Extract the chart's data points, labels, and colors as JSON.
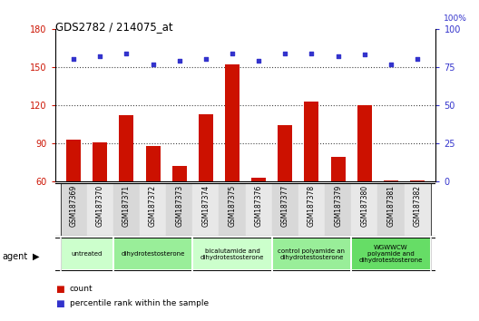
{
  "title": "GDS2782 / 214075_at",
  "samples": [
    "GSM187369",
    "GSM187370",
    "GSM187371",
    "GSM187372",
    "GSM187373",
    "GSM187374",
    "GSM187375",
    "GSM187376",
    "GSM187377",
    "GSM187378",
    "GSM187379",
    "GSM187380",
    "GSM187381",
    "GSM187382"
  ],
  "counts": [
    93,
    91,
    112,
    88,
    72,
    113,
    152,
    63,
    104,
    123,
    79,
    120,
    61,
    61
  ],
  "percentile_ranks": [
    80,
    82,
    84,
    77,
    79,
    80,
    84,
    79,
    84,
    84,
    82,
    83,
    77,
    80
  ],
  "left_ylim": [
    60,
    180
  ],
  "left_yticks": [
    60,
    90,
    120,
    150,
    180
  ],
  "right_ylim": [
    0,
    100
  ],
  "right_yticks": [
    0,
    25,
    50,
    75,
    100
  ],
  "bar_color": "#cc1100",
  "dot_color": "#3333cc",
  "groups": [
    {
      "label": "untreated",
      "indices": [
        0,
        1
      ],
      "color": "#ccffcc"
    },
    {
      "label": "dihydrotestosterone",
      "indices": [
        2,
        3,
        4
      ],
      "color": "#99ee99"
    },
    {
      "label": "bicalutamide and\ndihydrotestosterone",
      "indices": [
        5,
        6,
        7
      ],
      "color": "#ccffcc"
    },
    {
      "label": "control polyamide an\ndihydrotestosterone",
      "indices": [
        8,
        9,
        10
      ],
      "color": "#99ee99"
    },
    {
      "label": "WGWWCW\npolyamide and\ndihydrotestosterone",
      "indices": [
        11,
        12,
        13
      ],
      "color": "#66dd66"
    }
  ],
  "agent_label": "agent",
  "legend_count_label": "count",
  "legend_pct_label": "percentile rank within the sample",
  "dotted_line_color": "#444444",
  "grid_lines": [
    90,
    120,
    150
  ]
}
